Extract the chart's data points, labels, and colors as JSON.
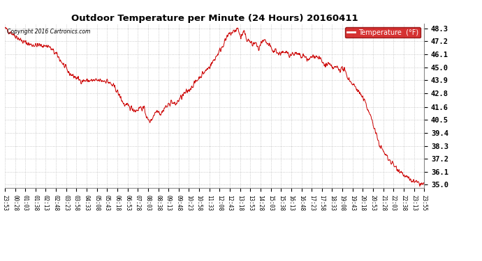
{
  "title": "Outdoor Temperature per Minute (24 Hours) 20160411",
  "copyright_text": "Copyright 2016 Cartronics.com",
  "legend_label": "Temperature  (°F)",
  "line_color": "#cc0000",
  "background_color": "#ffffff",
  "grid_color": "#bbbbbb",
  "y_min": 34.72,
  "y_max": 48.72,
  "y_ticks": [
    35.0,
    36.1,
    37.2,
    38.3,
    39.4,
    40.5,
    41.6,
    42.8,
    43.9,
    45.0,
    46.1,
    47.2,
    48.3
  ],
  "x_tick_labels": [
    "23:53",
    "00:28",
    "01:03",
    "01:38",
    "02:13",
    "02:48",
    "03:23",
    "03:58",
    "04:33",
    "05:08",
    "05:43",
    "06:18",
    "06:53",
    "07:28",
    "08:03",
    "08:38",
    "09:13",
    "09:48",
    "10:23",
    "10:58",
    "11:33",
    "12:08",
    "12:43",
    "13:18",
    "13:53",
    "14:28",
    "15:03",
    "15:38",
    "16:13",
    "16:48",
    "17:23",
    "17:58",
    "18:33",
    "19:08",
    "19:43",
    "20:18",
    "20:53",
    "21:28",
    "22:03",
    "22:38",
    "23:13",
    "23:55"
  ],
  "num_points": 1440,
  "seed": 42,
  "keypoints": [
    [
      0,
      48.3
    ],
    [
      30,
      47.8
    ],
    [
      60,
      47.2
    ],
    [
      90,
      46.9
    ],
    [
      120,
      46.85
    ],
    [
      150,
      46.8
    ],
    [
      180,
      46.0
    ],
    [
      220,
      44.5
    ],
    [
      260,
      43.85
    ],
    [
      300,
      43.85
    ],
    [
      350,
      43.85
    ],
    [
      380,
      43.2
    ],
    [
      410,
      41.8
    ],
    [
      430,
      41.6
    ],
    [
      450,
      41.3
    ],
    [
      465,
      41.6
    ],
    [
      480,
      41.4
    ],
    [
      490,
      40.5
    ],
    [
      500,
      40.4
    ],
    [
      515,
      41.1
    ],
    [
      525,
      41.4
    ],
    [
      535,
      41.0
    ],
    [
      550,
      41.6
    ],
    [
      560,
      41.7
    ],
    [
      570,
      42.1
    ],
    [
      585,
      41.8
    ],
    [
      600,
      42.3
    ],
    [
      615,
      42.7
    ],
    [
      630,
      43.0
    ],
    [
      650,
      43.6
    ],
    [
      670,
      44.2
    ],
    [
      690,
      44.7
    ],
    [
      710,
      45.3
    ],
    [
      725,
      45.9
    ],
    [
      740,
      46.5
    ],
    [
      755,
      47.2
    ],
    [
      770,
      47.8
    ],
    [
      785,
      48.0
    ],
    [
      800,
      48.3
    ],
    [
      810,
      47.5
    ],
    [
      820,
      48.0
    ],
    [
      830,
      47.4
    ],
    [
      840,
      47.2
    ],
    [
      850,
      46.9
    ],
    [
      860,
      47.1
    ],
    [
      870,
      46.5
    ],
    [
      880,
      47.0
    ],
    [
      890,
      47.2
    ],
    [
      900,
      47.0
    ],
    [
      910,
      46.8
    ],
    [
      920,
      46.3
    ],
    [
      930,
      46.5
    ],
    [
      940,
      46.1
    ],
    [
      950,
      46.3
    ],
    [
      960,
      46.1
    ],
    [
      970,
      46.3
    ],
    [
      980,
      46.0
    ],
    [
      990,
      46.2
    ],
    [
      1000,
      46.1
    ],
    [
      1010,
      46.0
    ],
    [
      1020,
      45.8
    ],
    [
      1030,
      46.0
    ],
    [
      1040,
      45.5
    ],
    [
      1050,
      45.8
    ],
    [
      1060,
      46.0
    ],
    [
      1070,
      45.9
    ],
    [
      1080,
      45.8
    ],
    [
      1090,
      45.4
    ],
    [
      1100,
      45.1
    ],
    [
      1110,
      45.3
    ],
    [
      1120,
      45.0
    ],
    [
      1130,
      44.9
    ],
    [
      1140,
      45.0
    ],
    [
      1150,
      44.8
    ],
    [
      1160,
      44.9
    ],
    [
      1170,
      44.5
    ],
    [
      1180,
      44.0
    ],
    [
      1190,
      43.7
    ],
    [
      1200,
      43.4
    ],
    [
      1210,
      43.1
    ],
    [
      1220,
      42.7
    ],
    [
      1230,
      42.3
    ],
    [
      1240,
      41.8
    ],
    [
      1250,
      41.2
    ],
    [
      1260,
      40.5
    ],
    [
      1270,
      39.6
    ],
    [
      1280,
      38.8
    ],
    [
      1290,
      38.2
    ],
    [
      1300,
      37.8
    ],
    [
      1310,
      37.4
    ],
    [
      1320,
      37.1
    ],
    [
      1330,
      36.8
    ],
    [
      1340,
      36.5
    ],
    [
      1350,
      36.3
    ],
    [
      1360,
      36.1
    ],
    [
      1370,
      35.8
    ],
    [
      1380,
      35.6
    ],
    [
      1390,
      35.4
    ],
    [
      1400,
      35.3
    ],
    [
      1410,
      35.2
    ],
    [
      1420,
      35.1
    ],
    [
      1430,
      35.05
    ],
    [
      1439,
      35.0
    ]
  ]
}
